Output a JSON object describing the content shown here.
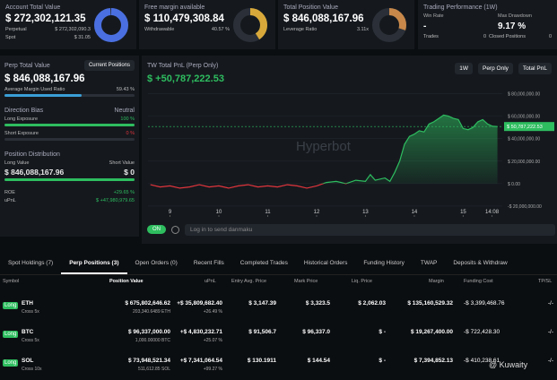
{
  "cards": [
    {
      "title": "Account Total Value",
      "value": "$ 272,302,121.35",
      "items": [
        {
          "label": "Perpetual",
          "value": "$ 272,302,090.3"
        },
        {
          "label": "Spot",
          "value": "$ 31.05"
        }
      ]
    },
    {
      "title": "Free margin available",
      "value": "$ 110,479,308.84",
      "items": [
        {
          "label": "Withdrawable",
          "value": "40.57 %"
        }
      ]
    },
    {
      "title": "Total Position Value",
      "value": "$ 846,088,167.96",
      "items": [
        {
          "label": "Leverage Ratio",
          "value": "3.11x"
        }
      ]
    }
  ],
  "performance": {
    "title": "Trading Performance (1W)",
    "win_rate_label": "Win Rate",
    "win_rate": "-",
    "drawdown_label": "Max Drawdown",
    "drawdown": "9.17 %",
    "trades_label": "Trades",
    "trades": "0",
    "closed_label": "Closed Positions",
    "closed": "0"
  },
  "perp_panel": {
    "title": "Perp Total Value",
    "button": "Current Positions",
    "value": "$ 846,088,167.96",
    "margin_label": "Average Margin Used Ratio",
    "margin_value": "59.43 %",
    "bias_title": "Direction Bias",
    "bias": "Neutral",
    "long_label": "Long Exposure",
    "long_value": "100 %",
    "short_label": "Short Exposure",
    "short_value": "0 %",
    "dist_title": "Position Distribution",
    "long_value_label": "Long Value",
    "short_value_label": "Short Value",
    "long_amount": "$ 846,088,167.96",
    "short_amount": "$ 0",
    "roe_label": "ROE",
    "roe": "+29.65 %",
    "upnl_label": "uPnL",
    "upnl": "$ +47,980,979.65"
  },
  "pnl_chart": {
    "type": "line",
    "title": "TW Total PnL (Perp Only)",
    "value": "$ +50,787,222.53",
    "controls": [
      "1W",
      "Perp Only",
      "Total PnL"
    ],
    "watermark": "Hyperbot",
    "xlim": [
      8.55,
      15.8
    ],
    "xticks": [
      9,
      10,
      11,
      12,
      13,
      14,
      15,
      {
        "value": 15.59,
        "label": "14:08"
      }
    ],
    "ylim": [
      -28000000,
      90000000
    ],
    "yticks": [
      {
        "value": 80000000,
        "label": "$ 80,000,000.00"
      },
      {
        "value": 60000000,
        "label": "$ 60,000,000.00"
      },
      {
        "value": 40000000,
        "label": "$ 40,000,000.00"
      },
      {
        "value": 20000000,
        "label": "$ 20,000,000.00"
      },
      {
        "value": 0,
        "label": "$ 0.00"
      },
      {
        "value": -20000000,
        "label": "-$ 20,000,000.00"
      }
    ],
    "x": [
      8.6,
      8.8,
      9.0,
      9.2,
      9.4,
      9.6,
      9.8,
      10.0,
      10.2,
      10.4,
      10.6,
      10.8,
      11.0,
      11.2,
      11.4,
      11.6,
      11.8,
      12.0,
      12.2,
      12.4,
      12.6,
      12.8,
      13.0,
      13.1,
      13.2,
      13.4,
      13.5,
      13.6,
      13.7,
      13.8,
      13.9,
      14.0,
      14.1,
      14.2,
      14.3,
      14.4,
      14.5,
      14.6,
      14.7,
      14.8,
      14.9,
      15.0,
      15.1,
      15.2,
      15.3,
      15.4,
      15.5,
      15.6,
      15.7
    ],
    "values": [
      -1000000,
      -3000000,
      -2000000,
      -4000000,
      -3000000,
      -1000000,
      -3000000,
      -2000000,
      -4000000,
      -2000000,
      -1000000,
      -3000000,
      -2000000,
      -3000000,
      -1000000,
      -2000000,
      -4000000,
      -2000000,
      1000000,
      2000000,
      0,
      3000000,
      2000000,
      8000000,
      3000000,
      5000000,
      2000000,
      10000000,
      20000000,
      35000000,
      42000000,
      44000000,
      47000000,
      46000000,
      53000000,
      55000000,
      58000000,
      61000000,
      60000000,
      58000000,
      57000000,
      49000000,
      48000000,
      50000000,
      55000000,
      57000000,
      53000000,
      51000000,
      50787222.53
    ],
    "last_label": "$ 50,787,222.53",
    "up_color": "#2ebd5f",
    "down_color": "#e0353c"
  },
  "danmaku": {
    "toggle": "ON",
    "placeholder": "Log in to send danmaku"
  },
  "tabs": [
    "Spot Holdings (7)",
    "Perp Positions (3)",
    "Open Orders (0)",
    "Recent Fills",
    "Completed Trades",
    "Historical Orders",
    "Funding History",
    "TWAP",
    "Deposits & Withdraw"
  ],
  "table": {
    "columns": [
      "Symbol",
      "Position Value",
      "uPnL",
      "Entry Avg. Price",
      "Mark Price",
      "Liq. Price",
      "Margin",
      "Funding Cost",
      "TP/SL"
    ],
    "rows": [
      {
        "side": "Long",
        "symbol": "ETH",
        "leverage": "Cross 5x",
        "position_value": "$ 675,802,646.62",
        "size": "203,340.6489 ETH",
        "upnl": "+$ 35,809,682.40",
        "upnl_pct": "+26.49 %",
        "entry": "$ 3,147.39",
        "mark": "$ 3,323.5",
        "liq": "$ 2,062.03",
        "margin": "$ 135,160,529.32",
        "funding": "-$ 3,399,468.76",
        "tpsl": "-/-"
      },
      {
        "side": "Long",
        "symbol": "BTC",
        "leverage": "Cross 5x",
        "position_value": "$ 96,337,000.00",
        "size": "1,000.00000 BTC",
        "upnl": "+$ 4,830,232.71",
        "upnl_pct": "+25.07 %",
        "entry": "$ 91,506.7",
        "mark": "$ 96,337.0",
        "liq": "$ -",
        "margin": "$ 19,267,400.00",
        "funding": "-$ 722,428.30",
        "tpsl": "-/-"
      },
      {
        "side": "Long",
        "symbol": "SOL",
        "leverage": "Cross 10x",
        "position_value": "$ 73,948,521.34",
        "size": "511,612.85 SOL",
        "upnl": "+$ 7,341,064.54",
        "upnl_pct": "+99.27 %",
        "entry": "$ 130.1911",
        "mark": "$ 144.54",
        "liq": "$ -",
        "margin": "$ 7,394,852.13",
        "funding": "-$ 410,238.61",
        "tpsl": "-/-"
      }
    ]
  },
  "watermark": "@ Kuwaity"
}
